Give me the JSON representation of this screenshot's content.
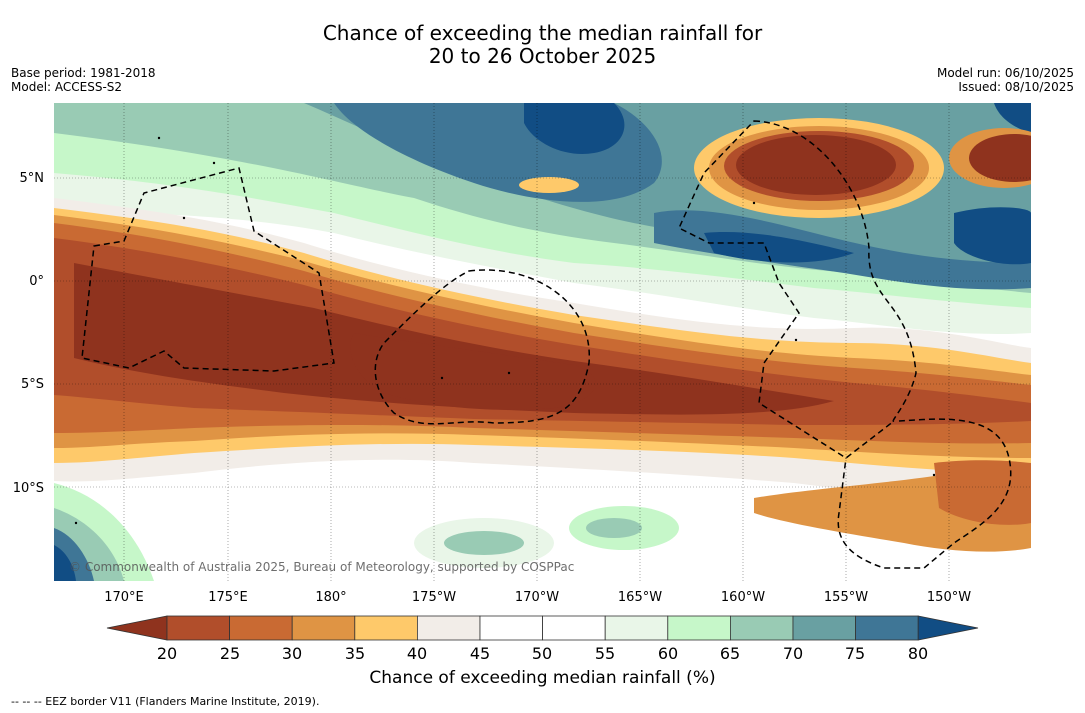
{
  "title": {
    "line1": "Chance of exceeding the median rainfall for",
    "line2": "20 to 26 October 2025"
  },
  "meta": {
    "base_period": "Base period: 1981-2018",
    "model": "Model: ACCESS-S2",
    "model_run": "Model run: 06/10/2025",
    "issued": "Issued: 08/10/2025"
  },
  "map": {
    "copyright": "© Commonwealth of Australia 2025, Bureau of Meteorology, supported by COSPPac",
    "lat_labels": [
      "5°N",
      "0°",
      "5°S",
      "10°S"
    ],
    "lon_labels": [
      "170°E",
      "175°E",
      "180°",
      "175°W",
      "170°W",
      "165°W",
      "160°W",
      "155°W",
      "150°W"
    ]
  },
  "colorbar": {
    "ticks": [
      "20",
      "25",
      "30",
      "35",
      "40",
      "45",
      "50",
      "55",
      "60",
      "65",
      "70",
      "75",
      "80"
    ],
    "colors": [
      "#8f331e",
      "#b14e2b",
      "#c96a33",
      "#df9444",
      "#fec96a",
      "#f2ede8",
      "#ffffff",
      "#ffffff",
      "#e9f6e8",
      "#c6f7c9",
      "#99cbb4",
      "#69a0a2",
      "#3f7696",
      "#114d84"
    ],
    "label": "Chance of exceeding median rainfall (%)"
  },
  "footnote": "--  --  -- EEZ border V11 (Flanders Marine Institute, 2019)."
}
